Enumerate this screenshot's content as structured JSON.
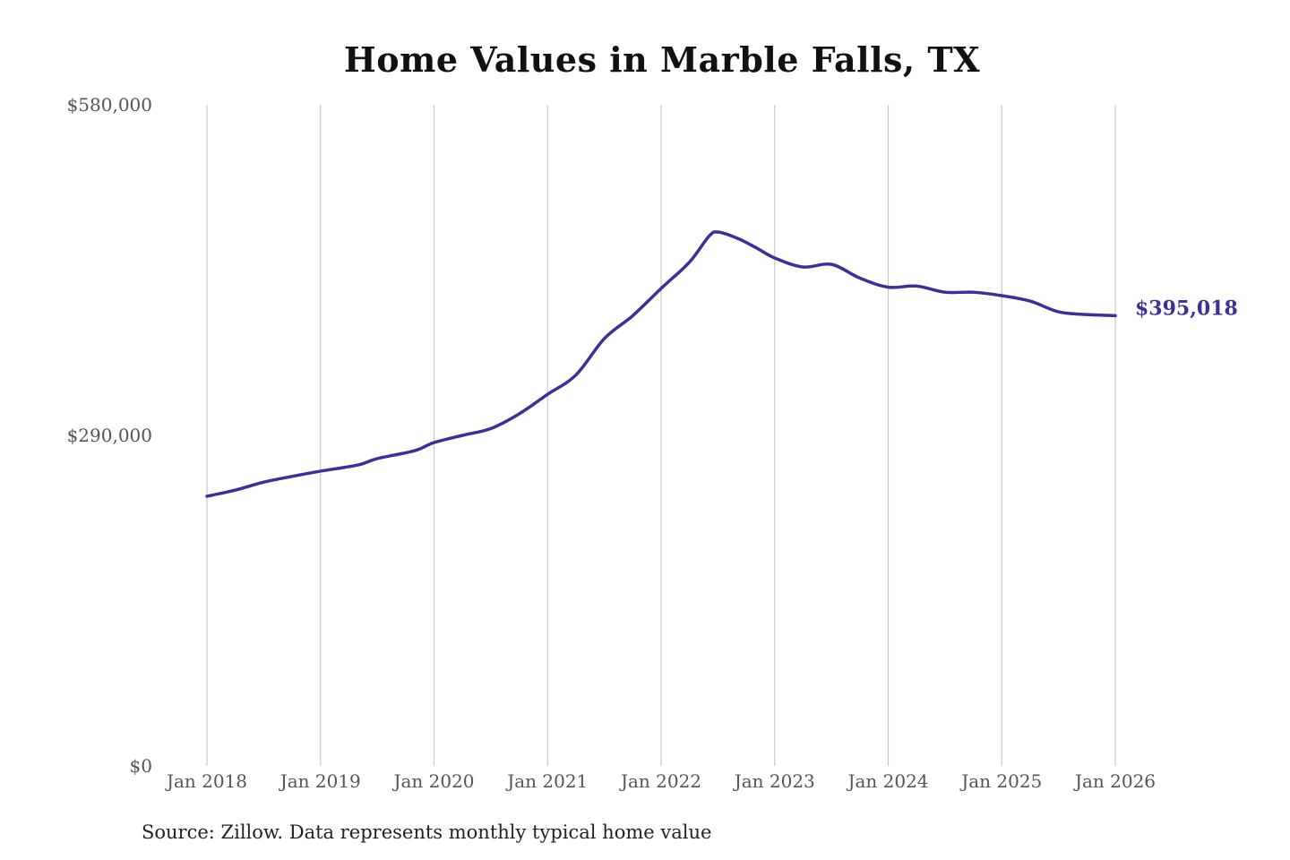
{
  "chart_data": {
    "type": "line",
    "title": "Home Values in Marble Falls, TX",
    "xlabel": "",
    "ylabel": "",
    "ylim": [
      0,
      580000
    ],
    "yticks": [
      {
        "value": 0,
        "label": "$0"
      },
      {
        "value": 290000,
        "label": "$290,000"
      },
      {
        "value": 580000,
        "label": "$580,000"
      }
    ],
    "xticks": [
      {
        "value": 2018,
        "label": "Jan 2018"
      },
      {
        "value": 2019,
        "label": "Jan 2019"
      },
      {
        "value": 2020,
        "label": "Jan 2020"
      },
      {
        "value": 2021,
        "label": "Jan 2021"
      },
      {
        "value": 2022,
        "label": "Jan 2022"
      },
      {
        "value": 2023,
        "label": "Jan 2023"
      },
      {
        "value": 2024,
        "label": "Jan 2024"
      },
      {
        "value": 2025,
        "label": "Jan 2025"
      },
      {
        "value": 2026,
        "label": "Jan 2026"
      }
    ],
    "xlim": [
      2018,
      2026
    ],
    "grid": "vertical",
    "line_color": "#3a3192",
    "series": [
      {
        "x": [
          2018.0,
          2018.25,
          2018.5,
          2018.75,
          2019.0,
          2019.33,
          2019.5,
          2019.83,
          2020.0,
          2020.25,
          2020.5,
          2020.75,
          2021.0,
          2021.25,
          2021.5,
          2021.75,
          2022.0,
          2022.25,
          2022.42,
          2022.5,
          2022.67,
          2022.83,
          2023.0,
          2023.25,
          2023.5,
          2023.75,
          2024.0,
          2024.25,
          2024.5,
          2024.75,
          2025.0,
          2025.25,
          2025.5,
          2025.75,
          2026.0
        ],
        "values": [
          236600,
          242000,
          249000,
          254000,
          258600,
          264000,
          269600,
          276600,
          283700,
          290000,
          296000,
          308900,
          326000,
          343000,
          374900,
          395000,
          418900,
          442000,
          464500,
          468400,
          463000,
          455000,
          445600,
          437700,
          440000,
          428000,
          420000,
          421000,
          415600,
          415600,
          412600,
          407800,
          398400,
          396000,
          395018
        ]
      }
    ],
    "end_label": "$395,018",
    "source": "Source: Zillow. Data represents monthly typical home value"
  }
}
